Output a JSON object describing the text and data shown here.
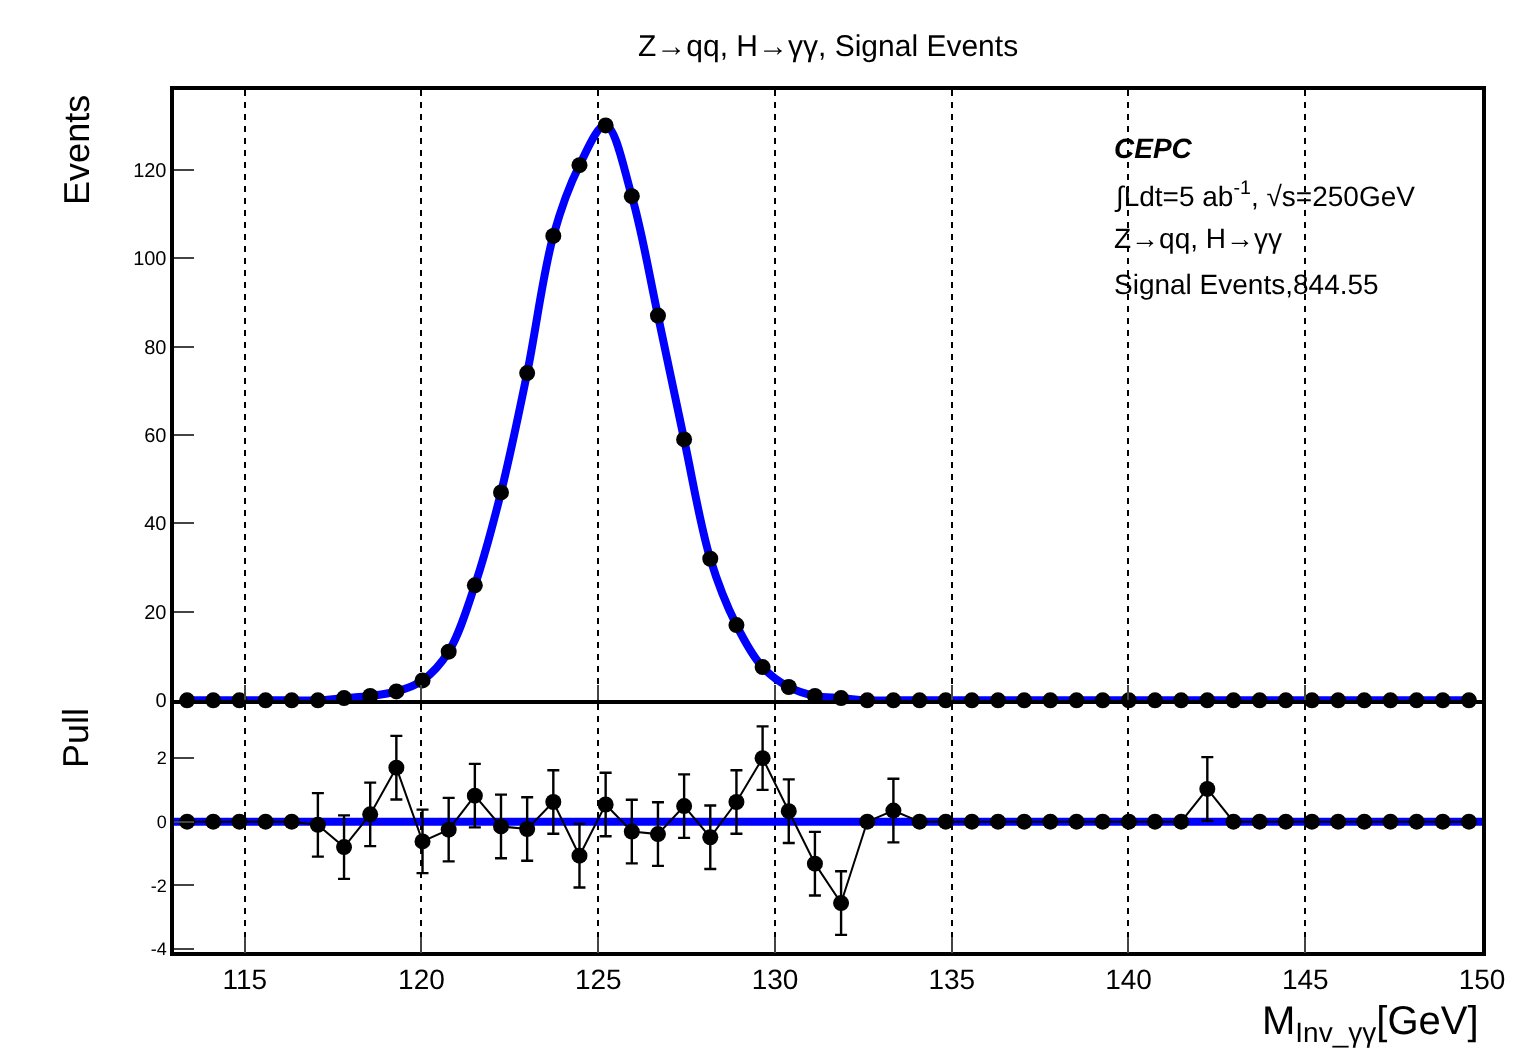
{
  "chart_data": [
    {
      "type": "scatter",
      "title": "Z→qq, H→γγ, Signal Events",
      "ylabel": "Events",
      "marker": "circle",
      "grid": "x",
      "tick_labels": "y",
      "x": [
        113.37,
        114.11,
        114.85,
        115.59,
        116.33,
        117.07,
        117.81,
        118.55,
        119.29,
        120.03,
        120.77,
        121.51,
        122.25,
        122.99,
        123.73,
        124.47,
        125.21,
        125.95,
        126.69,
        127.43,
        128.17,
        128.91,
        129.65,
        130.39,
        131.13,
        131.87,
        132.61,
        133.35,
        134.09,
        134.83,
        135.57,
        136.31,
        137.05,
        137.79,
        138.53,
        139.27,
        140.01,
        140.75,
        141.49,
        142.23,
        142.97,
        143.71,
        144.45,
        145.19,
        145.93,
        146.67,
        147.41,
        148.15,
        148.89,
        149.63
      ],
      "xlim": [
        113,
        150
      ],
      "xticks": [
        115,
        120,
        125,
        130,
        135,
        140,
        145,
        150
      ],
      "ylim": [
        0,
        138
      ],
      "yticks": [
        0,
        20,
        40,
        60,
        80,
        100,
        120
      ],
      "series": [
        {
          "color": "#000000",
          "values": [
            0,
            0,
            0,
            0,
            0,
            0,
            0.5,
            1,
            2,
            4.5,
            11,
            26,
            47,
            74,
            105,
            121,
            130,
            114,
            87,
            59,
            32,
            17,
            7.5,
            3,
            1,
            0.5,
            0,
            0,
            0,
            0,
            0,
            0,
            0,
            0,
            0,
            0,
            0,
            0,
            0,
            0,
            0,
            0,
            0,
            0,
            0,
            0,
            0,
            0,
            0,
            0
          ]
        },
        {
          "type": "line",
          "color": "#0000ff",
          "marker": "none",
          "values": [
            0,
            0,
            0,
            0,
            0,
            0,
            0.5,
            1,
            2,
            4.5,
            11,
            26,
            47,
            74,
            105,
            121,
            130,
            114,
            87,
            59,
            32,
            17,
            7.5,
            3,
            1,
            0.5,
            0,
            0,
            0,
            0,
            0,
            0,
            0,
            0,
            0,
            0,
            0,
            0,
            0,
            0,
            0,
            0,
            0,
            0,
            0,
            0,
            0,
            0,
            0,
            0
          ]
        }
      ],
      "annotations": [
        "CEPC",
        "∫Ldt=5 ab$^{-1}$, √s=250GeV",
        "Z→qq, H→γγ",
        "Signal Events,844.55"
      ]
    },
    {
      "type": "line",
      "ylabel": "Pull",
      "xlabel": "M$_{Inv_γγ}$[GeV]",
      "marker": "circle",
      "grid": "x",
      "x": [
        113.37,
        114.11,
        114.85,
        115.59,
        116.33,
        117.07,
        117.81,
        118.55,
        119.29,
        120.03,
        120.77,
        121.51,
        122.25,
        122.99,
        123.73,
        124.47,
        125.21,
        125.95,
        126.69,
        127.43,
        128.17,
        128.91,
        129.65,
        130.39,
        131.13,
        131.87,
        132.61,
        133.35,
        134.09,
        134.83,
        135.57,
        136.31,
        137.05,
        137.79,
        138.53,
        139.27,
        140.01,
        140.75,
        141.49,
        142.23,
        142.97,
        143.71,
        144.45,
        145.19,
        145.93,
        146.67,
        147.41,
        148.15,
        148.89,
        149.63
      ],
      "xlim": [
        113,
        150
      ],
      "xticks": [
        115,
        120,
        125,
        130,
        135,
        140,
        145,
        150
      ],
      "ylim": [
        -4.1,
        3.7
      ],
      "yticks": [
        -4,
        -2,
        0,
        2
      ],
      "series": [
        {
          "color": "#000000",
          "values": [
            0,
            0,
            0,
            0,
            0,
            -0.1,
            -0.8,
            0.23,
            1.7,
            -0.62,
            -0.25,
            0.82,
            -0.15,
            -0.23,
            0.62,
            -1.07,
            0.54,
            -0.31,
            -0.39,
            0.49,
            -0.49,
            0.62,
            2.0,
            0.33,
            -1.32,
            -2.56,
            0,
            0.35,
            0,
            0,
            0,
            0,
            0,
            0,
            0,
            0,
            0,
            0,
            0,
            1.03,
            0,
            0,
            0,
            0,
            0,
            0,
            0,
            0,
            0,
            0
          ],
          "errors": [
            null,
            null,
            null,
            null,
            null,
            1,
            1,
            1,
            1,
            1,
            1,
            1,
            1,
            1,
            1,
            1,
            1,
            1,
            1,
            1,
            1,
            1,
            1,
            1,
            1,
            1,
            null,
            1,
            null,
            null,
            null,
            null,
            null,
            null,
            null,
            null,
            null,
            null,
            null,
            1,
            null,
            null,
            null,
            null,
            null,
            null,
            null,
            null,
            null,
            null
          ]
        },
        {
          "type": "line",
          "color": "#0000ff",
          "marker": "none",
          "x": [
            113,
            150
          ],
          "values": [
            0,
            0
          ]
        }
      ]
    }
  ]
}
